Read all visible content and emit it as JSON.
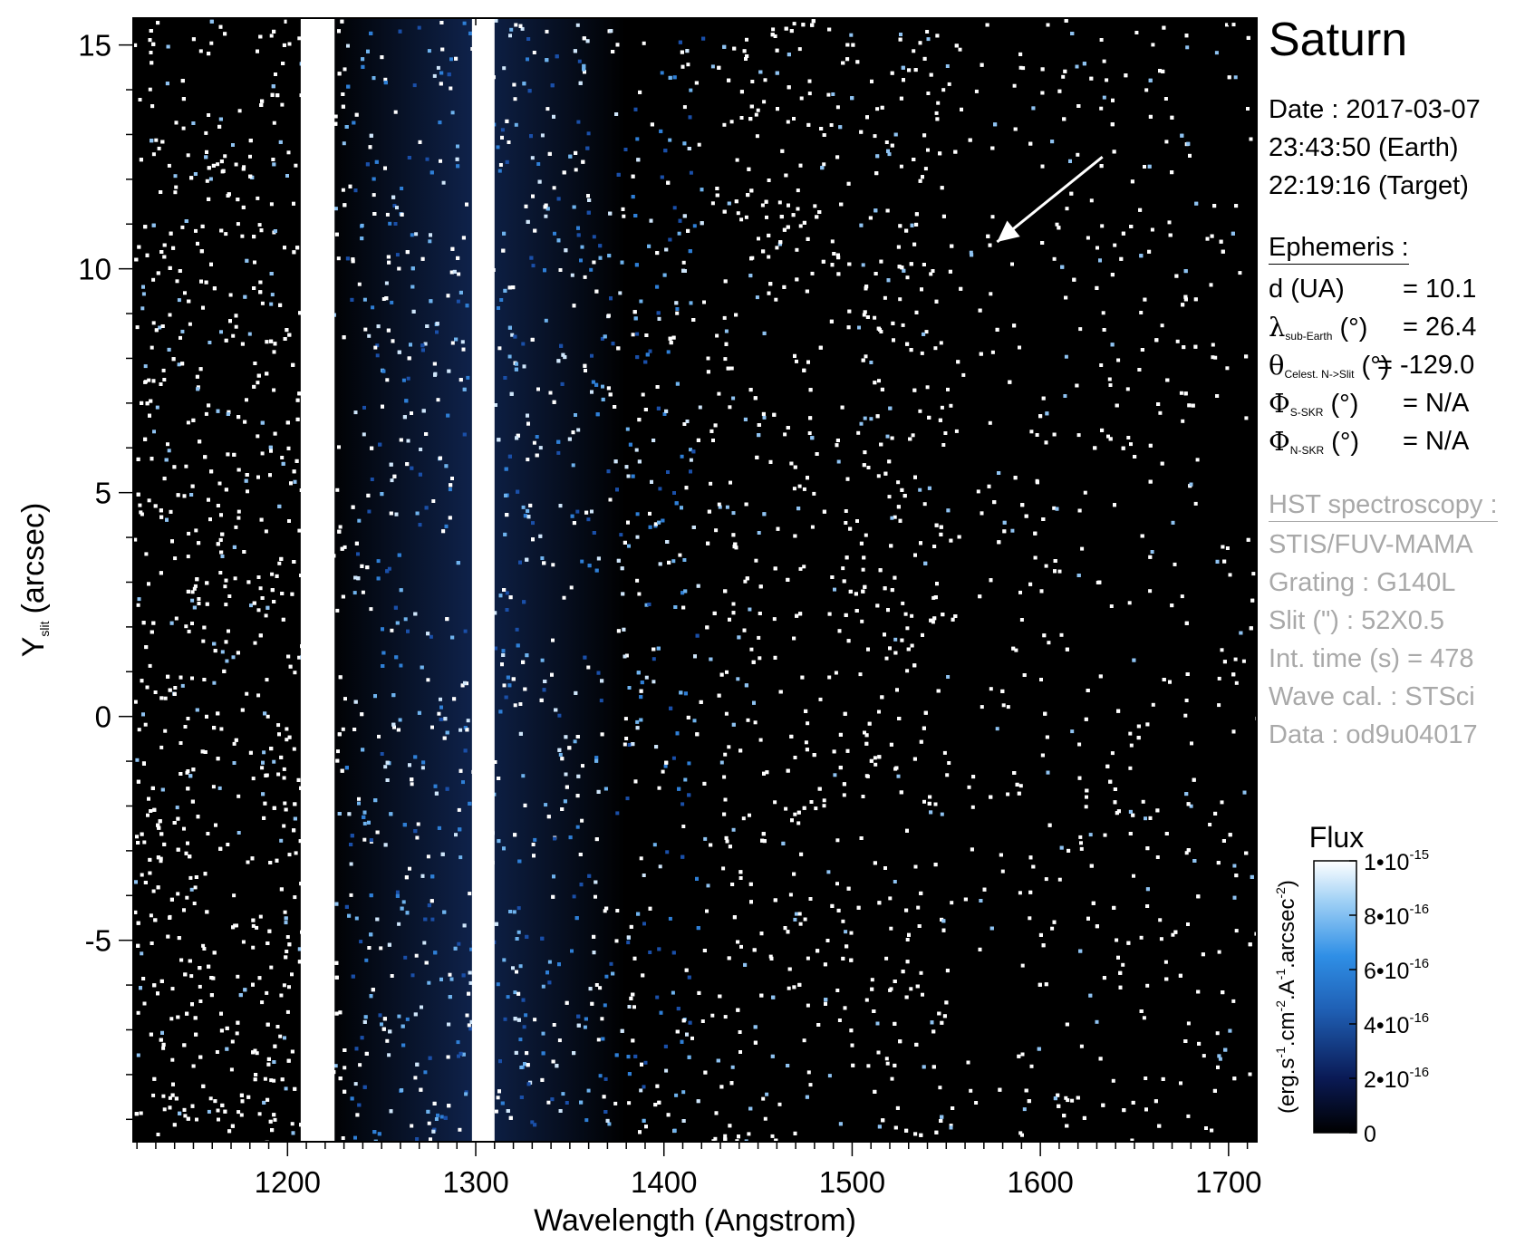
{
  "chart_data": {
    "type": "heatmap",
    "xlabel": "Wavelength (Angstrom)",
    "ylabel_main": "Y",
    "ylabel_sub": "slit",
    "ylabel_unit": "(arcsec)",
    "xlim": [
      1118,
      1715
    ],
    "ylim": [
      -9.5,
      15.6
    ],
    "x_ticks": [
      1200,
      1300,
      1400,
      1500,
      1600,
      1700
    ],
    "y_ticks": [
      -5,
      0,
      5,
      10,
      15
    ],
    "bright_bands": [
      {
        "center": 1216,
        "width": 18
      },
      {
        "center": 1304,
        "width": 12
      }
    ],
    "colorbar": {
      "title": "Flux",
      "label": "(erg.s-1.cm-2.A-1.arcsec-2)",
      "range": [
        0,
        1e-15
      ],
      "ticks": [
        {
          "value": 0,
          "label": "0"
        },
        {
          "value": 2e-16,
          "label": "2•10-16"
        },
        {
          "value": 4e-16,
          "label": "4•10-16"
        },
        {
          "value": 6e-16,
          "label": "6•10-16"
        },
        {
          "value": 8e-16,
          "label": "8•10-16"
        },
        {
          "value": 1e-15,
          "label": "1•10-15"
        }
      ],
      "colors": [
        "#000000",
        "#0a1a55",
        "#1f5fb4",
        "#2f8fe6",
        "#9fd0f5",
        "#ffffff"
      ]
    },
    "annotation_arrow": {
      "from": [
        1633,
        12.5
      ],
      "to": [
        1577,
        10.6
      ]
    }
  },
  "panel": {
    "title": "Saturn",
    "date_label": "Date : 2017-03-07",
    "time_earth": "23:43:50 (Earth)",
    "time_target": "22:19:16 (Target)",
    "ephemeris_header": "Ephemeris :",
    "ephemeris": [
      {
        "sym": "d",
        "sub": "",
        "rest": " (UA)",
        "value": "= 10.1"
      },
      {
        "sym": "λ",
        "sub": "sub-Earth",
        "rest": " (°)",
        "value": "= 26.4"
      },
      {
        "sym": "θ",
        "sub": "Celest. N->Slit",
        "rest": " (°)",
        "value": "= -129.0"
      },
      {
        "sym": "Φ",
        "sub": "S-SKR",
        "rest": " (°)",
        "value": "= N/A"
      },
      {
        "sym": "Φ",
        "sub": "N-SKR",
        "rest": " (°)",
        "value": "= N/A"
      }
    ],
    "hst_header": "HST spectroscopy :",
    "hst": [
      "STIS/FUV-MAMA",
      "Grating : G140L",
      "Slit (\") : 52X0.5",
      "Int. time (s) = 478",
      "Wave cal. : STSci",
      "Data : od9u04017"
    ]
  }
}
